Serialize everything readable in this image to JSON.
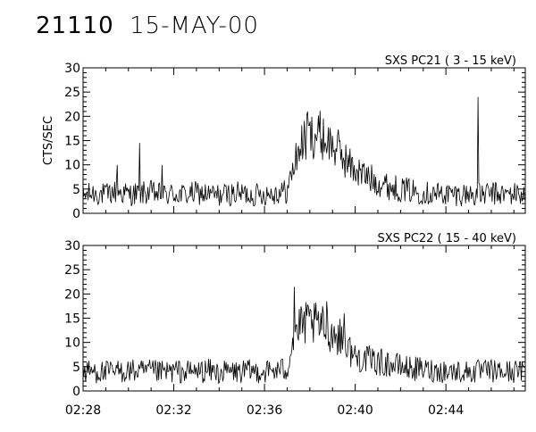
{
  "header": {
    "event_id": "21110",
    "date": "15-MAY-00"
  },
  "chart_data": [
    {
      "type": "line",
      "title": "SXS PC21  (  3 - 15 keV)",
      "ylabel": "CTS/SEC",
      "ylim": [
        0,
        30
      ],
      "yticks": [
        0,
        5,
        10,
        15,
        20,
        25,
        30
      ],
      "xlim": [
        "02:28",
        "02:47:30"
      ],
      "xticks": [
        "02:28",
        "02:32",
        "02:36",
        "02:40",
        "02:44"
      ],
      "grid": false,
      "series": [
        {
          "values": [
            {
              "x": "02:28:00",
              "y": 3.6
            },
            {
              "x": "02:28:30",
              "y": 4.2
            },
            {
              "x": "02:29:00",
              "y": 3.8
            },
            {
              "x": "02:29:30",
              "y": 4.5
            },
            {
              "x": "02:30:00",
              "y": 3.9
            },
            {
              "x": "02:30:30",
              "y": 4.1
            },
            {
              "x": "02:31:00",
              "y": 4.3
            },
            {
              "x": "02:31:30",
              "y": 3.7
            },
            {
              "x": "02:32:00",
              "y": 4.0
            },
            {
              "x": "02:32:30",
              "y": 3.8
            },
            {
              "x": "02:33:00",
              "y": 4.2
            },
            {
              "x": "02:33:30",
              "y": 3.9
            },
            {
              "x": "02:34:00",
              "y": 3.7
            },
            {
              "x": "02:34:30",
              "y": 4.0
            },
            {
              "x": "02:35:00",
              "y": 4.1
            },
            {
              "x": "02:35:30",
              "y": 3.8
            },
            {
              "x": "02:36:00",
              "y": 4.0
            },
            {
              "x": "02:36:30",
              "y": 4.3
            },
            {
              "x": "02:37:00",
              "y": 4.5
            },
            {
              "x": "02:37:15",
              "y": 9.0
            },
            {
              "x": "02:37:30",
              "y": 13.0
            },
            {
              "x": "02:37:45",
              "y": 15.0
            },
            {
              "x": "02:38:00",
              "y": 16.0
            },
            {
              "x": "02:38:15",
              "y": 16.5
            },
            {
              "x": "02:38:30",
              "y": 16.0
            },
            {
              "x": "02:38:45",
              "y": 15.0
            },
            {
              "x": "02:39:00",
              "y": 14.0
            },
            {
              "x": "02:39:15",
              "y": 13.0
            },
            {
              "x": "02:39:30",
              "y": 11.5
            },
            {
              "x": "02:39:45",
              "y": 10.0
            },
            {
              "x": "02:40:00",
              "y": 9.0
            },
            {
              "x": "02:40:30",
              "y": 7.5
            },
            {
              "x": "02:41:00",
              "y": 6.5
            },
            {
              "x": "02:41:30",
              "y": 5.5
            },
            {
              "x": "02:42:00",
              "y": 5.0
            },
            {
              "x": "02:42:30",
              "y": 4.6
            },
            {
              "x": "02:43:00",
              "y": 4.3
            },
            {
              "x": "02:43:30",
              "y": 4.1
            },
            {
              "x": "02:44:00",
              "y": 4.0
            },
            {
              "x": "02:44:30",
              "y": 3.9
            },
            {
              "x": "02:45:00",
              "y": 4.0
            },
            {
              "x": "02:45:30",
              "y": 3.8
            },
            {
              "x": "02:46:00",
              "y": 4.1
            },
            {
              "x": "02:46:30",
              "y": 3.9
            },
            {
              "x": "02:47:00",
              "y": 4.0
            },
            {
              "x": "02:47:30",
              "y": 4.0
            }
          ],
          "spikes": [
            {
              "x": "02:29:30",
              "y": 10.0
            },
            {
              "x": "02:30:30",
              "y": 14.5
            },
            {
              "x": "02:31:30",
              "y": 10.0
            },
            {
              "x": "02:37:55",
              "y": 21.0
            },
            {
              "x": "02:45:25",
              "y": 24.0
            }
          ]
        }
      ]
    },
    {
      "type": "line",
      "title": "SXS PC22  ( 15 - 40 keV)",
      "ylabel": "",
      "ylim": [
        0,
        30
      ],
      "yticks": [
        0,
        5,
        10,
        15,
        20,
        25,
        30
      ],
      "xlim": [
        "02:28",
        "02:47:30"
      ],
      "xticks": [
        "02:28",
        "02:32",
        "02:36",
        "02:40",
        "02:44"
      ],
      "grid": false,
      "series": [
        {
          "values": [
            {
              "x": "02:28:00",
              "y": 3.9
            },
            {
              "x": "02:28:30",
              "y": 4.1
            },
            {
              "x": "02:29:00",
              "y": 3.8
            },
            {
              "x": "02:29:30",
              "y": 4.0
            },
            {
              "x": "02:30:00",
              "y": 4.2
            },
            {
              "x": "02:30:30",
              "y": 3.9
            },
            {
              "x": "02:31:00",
              "y": 4.0
            },
            {
              "x": "02:31:30",
              "y": 3.8
            },
            {
              "x": "02:32:00",
              "y": 4.1
            },
            {
              "x": "02:32:30",
              "y": 3.9
            },
            {
              "x": "02:33:00",
              "y": 4.0
            },
            {
              "x": "02:33:30",
              "y": 4.2
            },
            {
              "x": "02:34:00",
              "y": 3.8
            },
            {
              "x": "02:34:30",
              "y": 4.0
            },
            {
              "x": "02:35:00",
              "y": 3.9
            },
            {
              "x": "02:35:30",
              "y": 4.1
            },
            {
              "x": "02:36:00",
              "y": 4.0
            },
            {
              "x": "02:36:30",
              "y": 4.2
            },
            {
              "x": "02:37:00",
              "y": 4.5
            },
            {
              "x": "02:37:10",
              "y": 9.0
            },
            {
              "x": "02:37:20",
              "y": 12.0
            },
            {
              "x": "02:37:40",
              "y": 13.5
            },
            {
              "x": "02:38:00",
              "y": 14.0
            },
            {
              "x": "02:38:20",
              "y": 13.5
            },
            {
              "x": "02:38:40",
              "y": 13.0
            },
            {
              "x": "02:39:00",
              "y": 12.0
            },
            {
              "x": "02:39:20",
              "y": 11.0
            },
            {
              "x": "02:39:40",
              "y": 9.0
            },
            {
              "x": "02:40:00",
              "y": 7.0
            },
            {
              "x": "02:40:30",
              "y": 6.5
            },
            {
              "x": "02:41:00",
              "y": 6.0
            },
            {
              "x": "02:41:30",
              "y": 5.5
            },
            {
              "x": "02:42:00",
              "y": 5.0
            },
            {
              "x": "02:42:30",
              "y": 4.6
            },
            {
              "x": "02:43:00",
              "y": 4.4
            },
            {
              "x": "02:43:30",
              "y": 4.2
            },
            {
              "x": "02:44:00",
              "y": 4.1
            },
            {
              "x": "02:44:30",
              "y": 4.0
            },
            {
              "x": "02:45:00",
              "y": 3.9
            },
            {
              "x": "02:45:30",
              "y": 4.0
            },
            {
              "x": "02:46:00",
              "y": 4.1
            },
            {
              "x": "02:46:30",
              "y": 3.9
            },
            {
              "x": "02:47:00",
              "y": 4.0
            },
            {
              "x": "02:47:30",
              "y": 4.0
            }
          ],
          "spikes": [
            {
              "x": "02:37:18",
              "y": 21.5
            },
            {
              "x": "02:38:45",
              "y": 18.5
            },
            {
              "x": "02:39:30",
              "y": 16.0
            }
          ]
        }
      ]
    }
  ]
}
